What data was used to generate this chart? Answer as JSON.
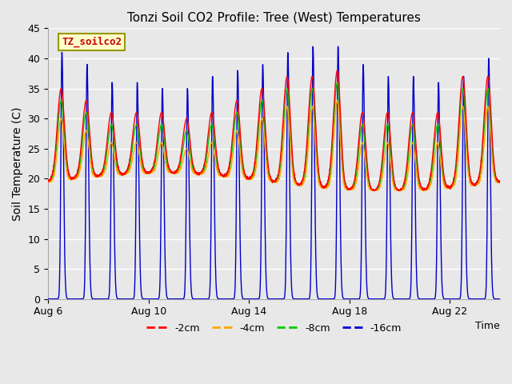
{
  "title": "Tonzi Soil CO2 Profile: Tree (West) Temperatures",
  "xlabel": "Time",
  "ylabel": "Soil Temperature (C)",
  "ylim": [
    0,
    45
  ],
  "yticks": [
    0,
    5,
    10,
    15,
    20,
    25,
    30,
    35,
    40,
    45
  ],
  "legend_label": "TZ_soilco2",
  "series_labels": [
    "-2cm",
    "-4cm",
    "-8cm",
    "-16cm"
  ],
  "series_colors": [
    "#ff0000",
    "#ffa500",
    "#00cc00",
    "#0000cc"
  ],
  "fig_facecolor": "#e8e8e8",
  "plot_facecolor": "#e8e8e8",
  "title_fontsize": 11,
  "axis_label_fontsize": 10,
  "tick_fontsize": 9,
  "x_tick_days": [
    6,
    10,
    14,
    18,
    22
  ],
  "grid_color": "#ffffff",
  "grid_linewidth": 1.0,
  "figsize": [
    6.4,
    4.8
  ],
  "dpi": 100
}
